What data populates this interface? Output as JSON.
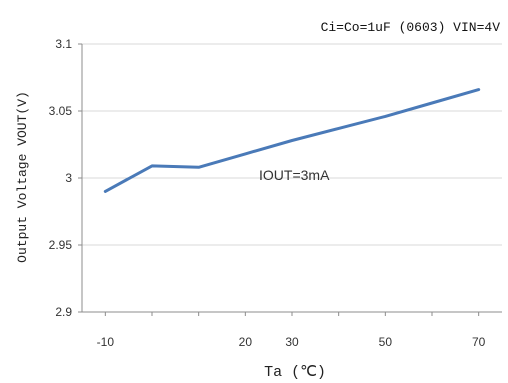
{
  "chart_data": {
    "type": "line",
    "title": "Ci=Co=1uF (0603) VIN=4V",
    "annotation": "IOUT=3mA",
    "xlabel": "Ta (℃)",
    "ylabel": "Output Voltage VOUT(V)",
    "xlim": [
      -15,
      75
    ],
    "ylim": [
      2.9,
      3.1
    ],
    "x_ticks": [
      -10,
      20,
      30,
      50,
      70
    ],
    "x_tick_labels": [
      "-10",
      "20",
      "30",
      "50",
      "70"
    ],
    "y_ticks": [
      2.9,
      2.95,
      3.0,
      3.05,
      3.1
    ],
    "y_tick_labels": [
      "2.9",
      "2.95",
      "3",
      "3.05",
      "3.1"
    ],
    "grid": "horizontal",
    "series": [
      {
        "color": "#4a7ab8",
        "x": [
          -10,
          0,
          10,
          20,
          30,
          40,
          50,
          60,
          70
        ],
        "y": [
          2.99,
          3.009,
          3.008,
          3.018,
          3.028,
          3.037,
          3.046,
          3.056,
          3.066
        ]
      }
    ]
  }
}
